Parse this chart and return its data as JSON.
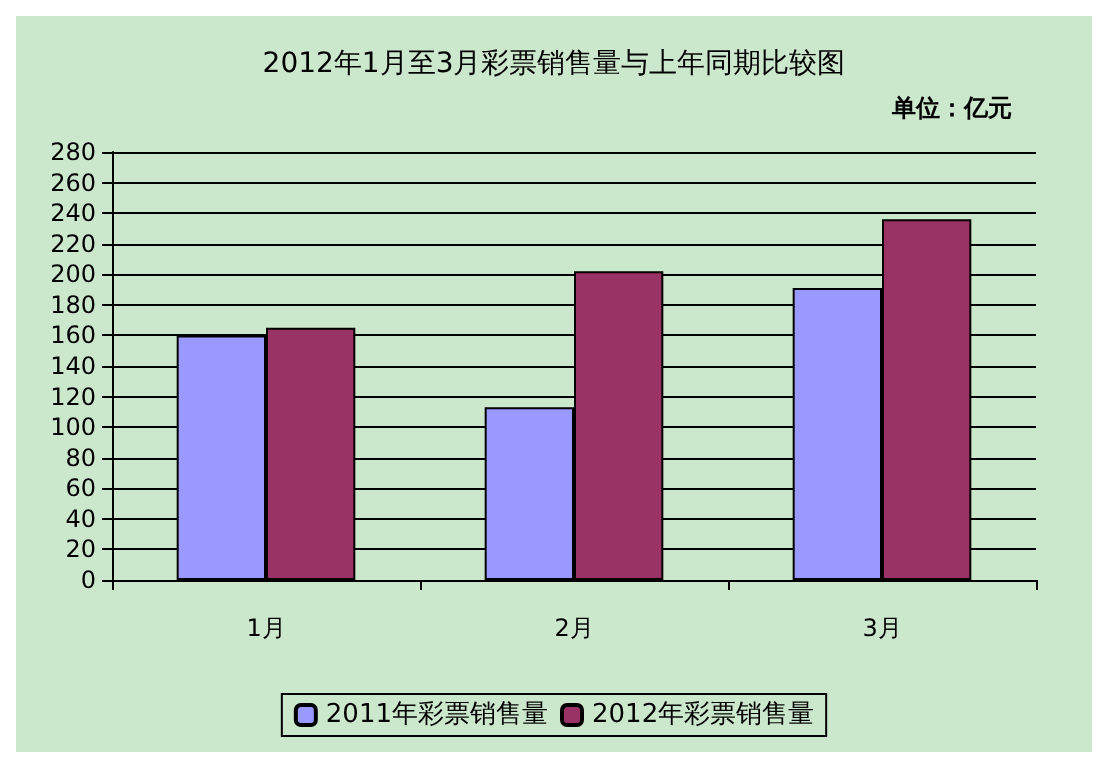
{
  "chart_data": {
    "type": "bar",
    "title": "2012年1月至3月彩票销售量与上年同期比较图",
    "annotations": [
      "单位：亿元"
    ],
    "categories": [
      "1月",
      "2月",
      "3月"
    ],
    "series": [
      {
        "name": "2011年彩票销售量",
        "color": "#9999ff",
        "values": [
          160,
          113,
          191
        ]
      },
      {
        "name": "2012年彩票销售量",
        "color": "#993366",
        "values": [
          165,
          202,
          236
        ]
      }
    ],
    "ylim": [
      0,
      280
    ],
    "yticks": [
      0,
      20,
      40,
      60,
      80,
      100,
      120,
      140,
      160,
      180,
      200,
      220,
      240,
      260,
      280
    ],
    "grid": "y",
    "legend": "bottom"
  }
}
